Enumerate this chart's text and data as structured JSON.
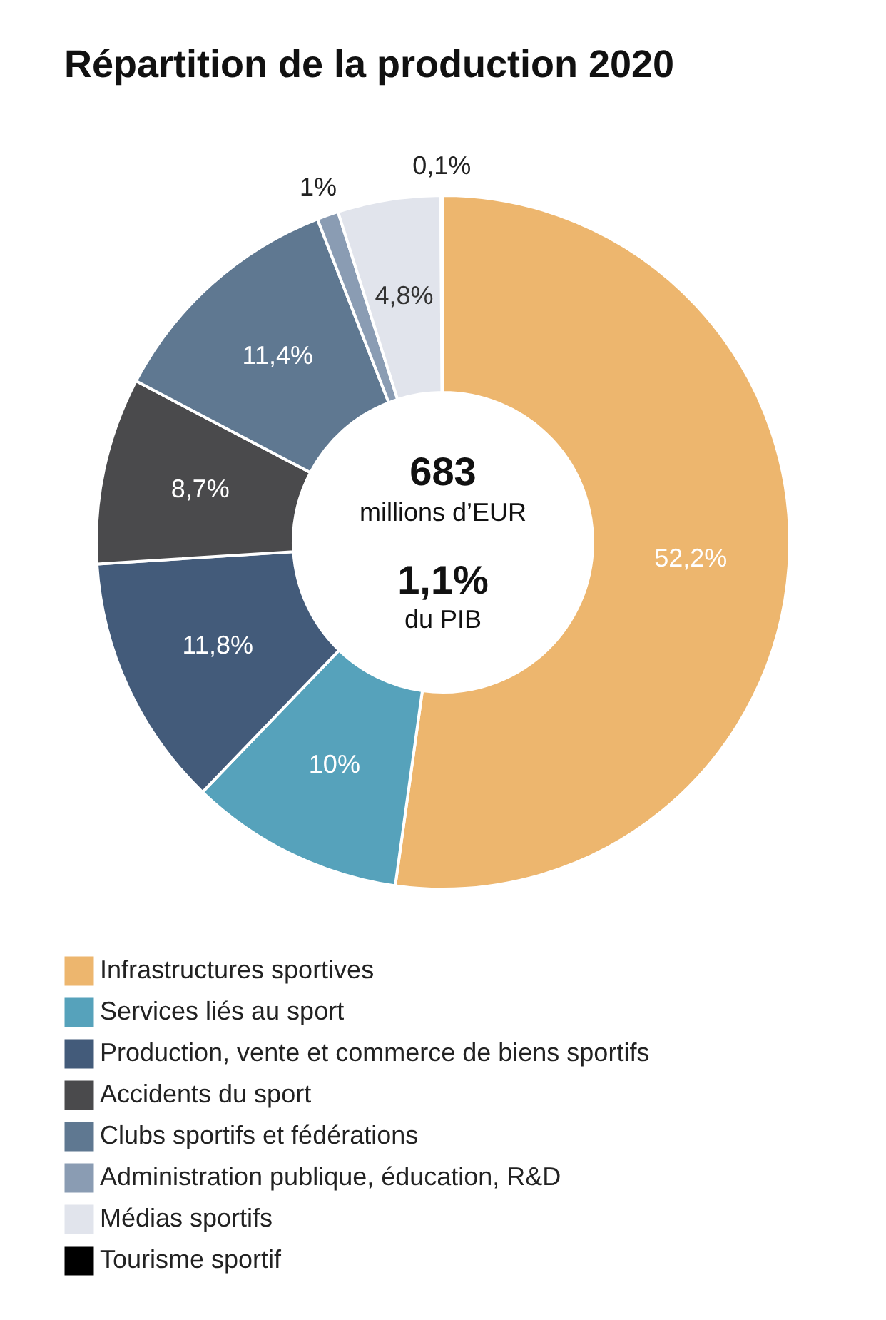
{
  "chart_data": {
    "type": "donut",
    "title": "Répartition de la production 2020",
    "categories": [
      "Infrastructures sportives",
      "Services liés au sport",
      "Production, vente et commerce de biens sportifs",
      "Accidents du sport",
      "Clubs sportifs et fédérations",
      "Administration publique, éducation, R&D",
      "Médias sportifs",
      "Tourisme sportif"
    ],
    "values": [
      52.2,
      10,
      11.8,
      8.7,
      11.4,
      1,
      4.8,
      0.1
    ],
    "colors": [
      "#edb66e",
      "#56a2bb",
      "#435b7a",
      "#4a4a4c",
      "#5f7891",
      "#8a9cb3",
      "#e1e4ec",
      "#000000"
    ],
    "value_labels": [
      "52,2%",
      "10%",
      "11,8%",
      "8,7%",
      "11,4%",
      "1%",
      "4,8%",
      "0,1%"
    ],
    "annotations": [
      "683",
      "millions d’EUR",
      "1,1%",
      "du PIB"
    ],
    "legend": "bottom"
  }
}
